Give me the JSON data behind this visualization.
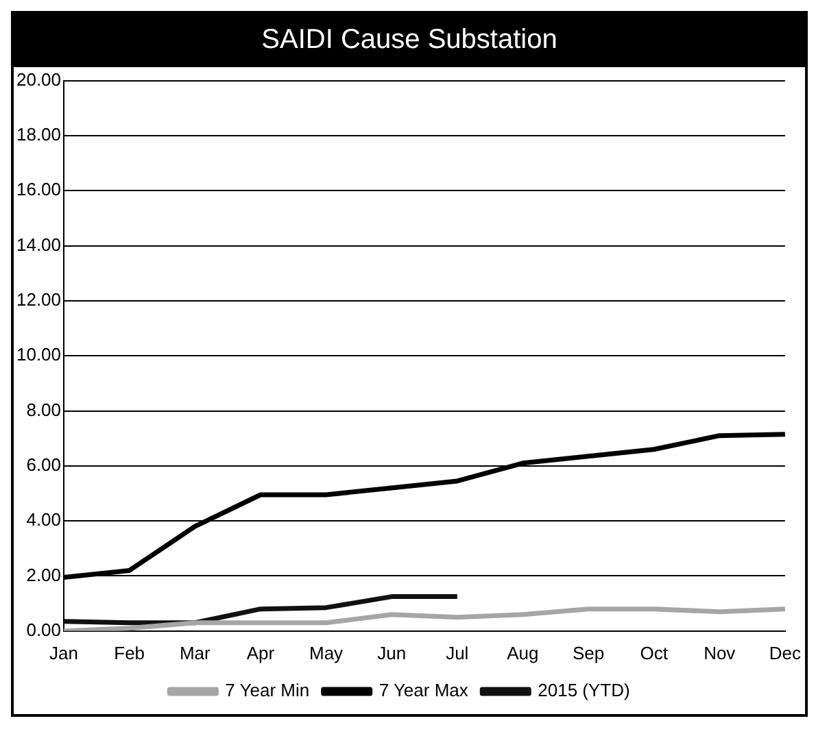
{
  "chart_data": {
    "type": "line",
    "title": "SAIDI Cause Substation",
    "categories": [
      "Jan",
      "Feb",
      "Mar",
      "Apr",
      "May",
      "Jun",
      "Jul",
      "Aug",
      "Sep",
      "Oct",
      "Nov",
      "Dec"
    ],
    "series": [
      {
        "name": "7 Year Min",
        "color": "#a6a6a6",
        "values": [
          0.0,
          0.1,
          0.3,
          0.3,
          0.3,
          0.6,
          0.5,
          0.6,
          0.8,
          0.8,
          0.7,
          0.8
        ]
      },
      {
        "name": "7 Year Max",
        "color": "#000000",
        "values": [
          1.95,
          2.2,
          3.8,
          4.95,
          4.95,
          5.2,
          5.45,
          6.1,
          6.35,
          6.6,
          7.1,
          7.15
        ]
      },
      {
        "name": "2015 (YTD)",
        "color": "#111111",
        "values": [
          0.35,
          0.3,
          0.3,
          0.8,
          0.85,
          1.25,
          1.25,
          null,
          null,
          null,
          null,
          null
        ]
      }
    ],
    "ylim": [
      0,
      20
    ],
    "yticks": [
      {
        "value": 0,
        "label": "0.00"
      },
      {
        "value": 2,
        "label": "2.00"
      },
      {
        "value": 4,
        "label": "4.00"
      },
      {
        "value": 6,
        "label": "6.00"
      },
      {
        "value": 8,
        "label": "8.00"
      },
      {
        "value": 10,
        "label": "10.00"
      },
      {
        "value": 12,
        "label": "12.00"
      },
      {
        "value": 14,
        "label": "14.00"
      },
      {
        "value": 16,
        "label": "16.00"
      },
      {
        "value": 18,
        "label": "18.00"
      },
      {
        "value": 20,
        "label": "20.00"
      }
    ],
    "grid": "y",
    "legend": "bottom",
    "marker": "none",
    "line_style": "solid"
  }
}
